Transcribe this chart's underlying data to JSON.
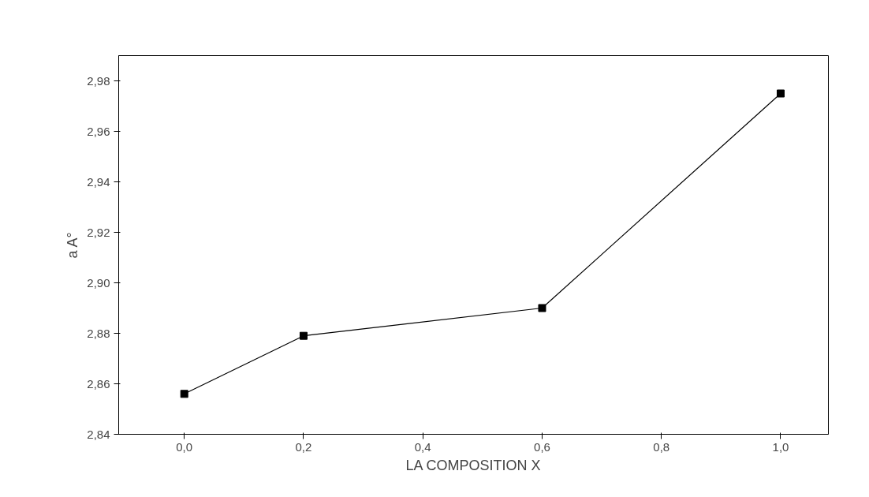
{
  "chart_data": {
    "type": "line",
    "xlabel": "LA COMPOSITION X",
    "ylabel": "a A°",
    "x": [
      0.0,
      0.2,
      0.6,
      1.0
    ],
    "series": [
      {
        "color": "#000000",
        "values": [
          2.856,
          2.879,
          2.89,
          2.975
        ]
      }
    ],
    "xlim": [
      -0.11,
      1.08
    ],
    "ylim": [
      2.84,
      2.99
    ],
    "xticks": [
      {
        "value": 0.0,
        "label": "0,0"
      },
      {
        "value": 0.2,
        "label": "0,2"
      },
      {
        "value": 0.4,
        "label": "0,4"
      },
      {
        "value": 0.6,
        "label": "0,6"
      },
      {
        "value": 0.8,
        "label": "0,8"
      },
      {
        "value": 1.0,
        "label": "1,0"
      }
    ],
    "yticks": [
      {
        "value": 2.84,
        "label": "2,84"
      },
      {
        "value": 2.86,
        "label": "2,86"
      },
      {
        "value": 2.88,
        "label": "2,88"
      },
      {
        "value": 2.9,
        "label": "2,90"
      },
      {
        "value": 2.92,
        "label": "2,92"
      },
      {
        "value": 2.94,
        "label": "2,94"
      },
      {
        "value": 2.96,
        "label": "2,96"
      },
      {
        "value": 2.98,
        "label": "2,98"
      }
    ],
    "marker": "square",
    "line_style": "solid",
    "grid": false
  }
}
